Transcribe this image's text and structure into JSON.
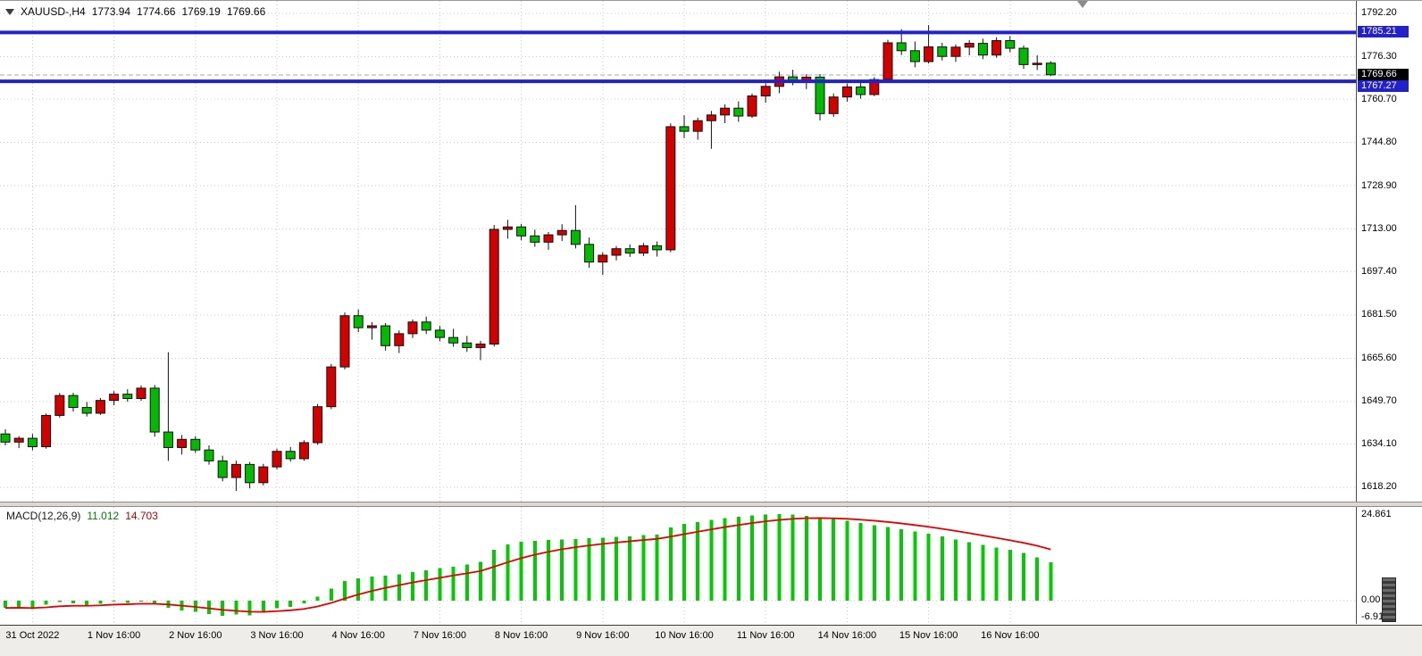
{
  "header": {
    "symbol": "XAUUSD-,H4",
    "open": "1773.94",
    "high": "1774.66",
    "low": "1769.19",
    "close": "1769.66"
  },
  "indicator": {
    "label": "MACD(12,26,9)",
    "main_value": "11.012",
    "signal_value": "14.703"
  },
  "price_axis": {
    "grid_labels": [
      "1792.20",
      "1776.30",
      "1760.70",
      "1744.80",
      "1728.90",
      "1713.00",
      "1697.40",
      "1681.50",
      "1665.60",
      "1649.70",
      "1634.10",
      "1618.20"
    ],
    "level_labels": [
      {
        "text": "1785.21",
        "style": "blue"
      },
      {
        "text": "1769.66",
        "style": "black"
      },
      {
        "text": "1767.27",
        "style": "blue"
      }
    ]
  },
  "macd_axis": {
    "max_label": "24.861",
    "zero_label": "0.00",
    "min_label": "-6.91"
  },
  "colors": {
    "bull": "#D40000",
    "bear": "#00BB00",
    "wick": "#111111",
    "level": "#2121CE",
    "grid": "#C9C9C9",
    "bid": "#AAAAB8",
    "hist": "#00CC00",
    "signal": "#E80000",
    "tag_black_bg": "#000000"
  },
  "chart_data": [
    {
      "type": "candlestick",
      "symbol": "XAUUSD-",
      "timeframe": "H4",
      "current_ohlc": {
        "open": 1773.94,
        "high": 1774.66,
        "low": 1769.19,
        "close": 1769.66
      },
      "ylim": [
        1612.0,
        1796.8
      ],
      "x_labels": [
        "31 Oct 2022",
        "1 Nov 16:00",
        "2 Nov 16:00",
        "3 Nov 16:00",
        "4 Nov 16:00",
        "7 Nov 16:00",
        "8 Nov 16:00",
        "9 Nov 16:00",
        "10 Nov 16:00",
        "11 Nov 16:00",
        "14 Nov 16:00",
        "15 Nov 16:00",
        "16 Nov 16:00"
      ],
      "x_label_candle_indices": [
        2,
        8,
        14,
        20,
        26,
        32,
        38,
        44,
        50,
        56,
        62,
        68,
        74
      ],
      "horizontal_lines": [
        {
          "price": 1785.21,
          "label": "1785.21"
        },
        {
          "price": 1767.27,
          "label": "1767.27"
        }
      ],
      "bid_price": 1769.66,
      "color_note": "bullish candles rendered red, bearish candles rendered green",
      "candles": [
        [
          1637.8,
          1639.5,
          1633.6,
          1634.8
        ],
        [
          1634.8,
          1637.0,
          1632.6,
          1636.2
        ],
        [
          1636.2,
          1637.8,
          1631.8,
          1633.1
        ],
        [
          1633.1,
          1645.3,
          1632.4,
          1644.6
        ],
        [
          1644.6,
          1652.8,
          1643.8,
          1651.9
        ],
        [
          1651.9,
          1652.9,
          1646.0,
          1647.5
        ],
        [
          1647.5,
          1649.5,
          1644.2,
          1645.4
        ],
        [
          1645.4,
          1651.0,
          1644.8,
          1650.1
        ],
        [
          1650.1,
          1653.5,
          1648.3,
          1652.4
        ],
        [
          1652.4,
          1654.2,
          1649.6,
          1650.8
        ],
        [
          1650.8,
          1655.6,
          1650.0,
          1654.6
        ],
        [
          1654.6,
          1655.8,
          1636.8,
          1638.5
        ],
        [
          1638.5,
          1667.8,
          1627.9,
          1632.8
        ],
        [
          1632.8,
          1637.4,
          1630.2,
          1635.8
        ],
        [
          1635.8,
          1637.0,
          1630.8,
          1631.9
        ],
        [
          1631.9,
          1633.6,
          1626.5,
          1627.9
        ],
        [
          1627.9,
          1629.8,
          1620.4,
          1621.8
        ],
        [
          1621.8,
          1628.0,
          1616.9,
          1626.6
        ],
        [
          1626.6,
          1627.5,
          1617.8,
          1619.9
        ],
        [
          1619.9,
          1626.8,
          1618.9,
          1625.7
        ],
        [
          1625.7,
          1632.4,
          1624.8,
          1631.4
        ],
        [
          1631.4,
          1633.0,
          1627.6,
          1628.7
        ],
        [
          1628.7,
          1635.5,
          1627.9,
          1634.6
        ],
        [
          1634.6,
          1648.8,
          1633.8,
          1647.8
        ],
        [
          1647.8,
          1663.5,
          1646.9,
          1662.4
        ],
        [
          1662.4,
          1682.4,
          1661.5,
          1681.2
        ],
        [
          1681.2,
          1683.5,
          1675.2,
          1676.8
        ],
        [
          1676.8,
          1678.9,
          1672.4,
          1677.5
        ],
        [
          1677.5,
          1678.5,
          1668.4,
          1670.2
        ],
        [
          1670.2,
          1675.8,
          1667.5,
          1674.6
        ],
        [
          1674.6,
          1679.8,
          1673.0,
          1678.9
        ],
        [
          1678.9,
          1680.9,
          1674.5,
          1675.9
        ],
        [
          1675.9,
          1677.5,
          1671.8,
          1673.2
        ],
        [
          1673.2,
          1676.4,
          1669.8,
          1671.2
        ],
        [
          1671.2,
          1673.8,
          1667.9,
          1669.5
        ],
        [
          1669.5,
          1672.0,
          1664.9,
          1670.8
        ],
        [
          1670.8,
          1714.5,
          1669.9,
          1712.9
        ],
        [
          1712.9,
          1716.4,
          1709.5,
          1713.8
        ],
        [
          1713.8,
          1714.9,
          1708.9,
          1710.5
        ],
        [
          1710.5,
          1712.8,
          1706.5,
          1708.2
        ],
        [
          1708.2,
          1711.9,
          1705.4,
          1710.9
        ],
        [
          1710.9,
          1714.8,
          1708.6,
          1712.5
        ],
        [
          1712.5,
          1721.8,
          1705.9,
          1707.4
        ],
        [
          1707.4,
          1709.9,
          1698.8,
          1700.9
        ],
        [
          1700.9,
          1704.5,
          1696.2,
          1703.4
        ],
        [
          1703.4,
          1706.8,
          1701.5,
          1705.8
        ],
        [
          1705.8,
          1707.4,
          1702.8,
          1704.2
        ],
        [
          1704.2,
          1707.9,
          1703.1,
          1706.9
        ],
        [
          1706.9,
          1708.5,
          1702.9,
          1705.4
        ],
        [
          1705.4,
          1751.8,
          1704.5,
          1750.6
        ],
        [
          1750.6,
          1754.8,
          1746.4,
          1748.9
        ],
        [
          1748.9,
          1753.9,
          1745.8,
          1752.8
        ],
        [
          1752.8,
          1756.4,
          1742.5,
          1754.9
        ],
        [
          1754.9,
          1758.8,
          1751.9,
          1757.4
        ],
        [
          1757.4,
          1759.9,
          1752.4,
          1754.5
        ],
        [
          1754.5,
          1762.8,
          1753.8,
          1761.9
        ],
        [
          1761.9,
          1766.5,
          1759.4,
          1765.4
        ],
        [
          1765.4,
          1770.8,
          1762.9,
          1768.9
        ],
        [
          1768.9,
          1771.5,
          1765.8,
          1767.2
        ],
        [
          1767.2,
          1769.9,
          1764.4,
          1768.8
        ],
        [
          1768.8,
          1769.9,
          1752.9,
          1755.4
        ],
        [
          1755.4,
          1762.8,
          1754.2,
          1761.5
        ],
        [
          1761.5,
          1766.4,
          1759.8,
          1765.2
        ],
        [
          1765.2,
          1766.9,
          1760.9,
          1762.4
        ],
        [
          1762.4,
          1768.8,
          1761.8,
          1767.9
        ],
        [
          1767.9,
          1782.5,
          1767.2,
          1781.4
        ],
        [
          1781.4,
          1786.4,
          1776.9,
          1778.5
        ],
        [
          1778.5,
          1781.9,
          1772.4,
          1774.5
        ],
        [
          1774.5,
          1787.9,
          1773.8,
          1779.9
        ],
        [
          1779.9,
          1781.4,
          1774.9,
          1776.4
        ],
        [
          1776.4,
          1780.8,
          1774.4,
          1779.8
        ],
        [
          1779.8,
          1782.4,
          1776.8,
          1781.2
        ],
        [
          1781.2,
          1782.9,
          1775.4,
          1776.9
        ],
        [
          1776.9,
          1783.4,
          1775.9,
          1782.2
        ],
        [
          1782.2,
          1783.9,
          1777.9,
          1779.4
        ],
        [
          1779.4,
          1780.4,
          1771.9,
          1773.4
        ],
        [
          1773.4,
          1776.8,
          1771.4,
          1773.9
        ],
        [
          1773.94,
          1774.66,
          1769.19,
          1769.66
        ]
      ]
    },
    {
      "type": "bar+line",
      "title": "MACD(12,26,9)",
      "current_main": 11.012,
      "current_signal": 14.703,
      "ylim": [
        -6.91,
        24.861
      ],
      "histogram": [
        -2.1,
        -1.8,
        -2.4,
        -1.2,
        -0.4,
        -0.8,
        -1.5,
        -0.9,
        -0.3,
        -0.6,
        -0.2,
        -1.0,
        -2.0,
        -2.8,
        -3.2,
        -3.8,
        -4.4,
        -4.0,
        -4.2,
        -3.4,
        -2.2,
        -1.8,
        -0.8,
        1.2,
        3.4,
        5.6,
        6.4,
        6.9,
        7.2,
        7.6,
        8.2,
        8.7,
        9.3,
        9.8,
        10.4,
        11.2,
        14.6,
        16.2,
        16.9,
        17.2,
        17.4,
        17.6,
        17.7,
        17.9,
        18.1,
        18.3,
        18.5,
        18.8,
        19.0,
        21.0,
        22.0,
        22.6,
        23.2,
        23.7,
        24.1,
        24.5,
        24.75,
        24.861,
        24.7,
        24.4,
        23.9,
        23.4,
        22.9,
        22.3,
        21.7,
        21.2,
        20.5,
        19.8,
        19.2,
        18.4,
        17.6,
        16.8,
        16.0,
        15.3,
        14.6,
        13.7,
        12.4,
        11.012
      ],
      "signal": [
        -2.1,
        -2.04,
        -2.11,
        -1.93,
        -1.62,
        -1.46,
        -1.47,
        -1.35,
        -1.14,
        -1.04,
        -0.87,
        -0.89,
        -1.11,
        -1.45,
        -1.8,
        -2.2,
        -2.64,
        -2.91,
        -3.17,
        -3.22,
        -3.01,
        -2.77,
        -2.38,
        -1.66,
        -0.65,
        0.6,
        1.76,
        2.79,
        3.67,
        4.46,
        5.21,
        5.9,
        6.58,
        7.23,
        7.86,
        8.53,
        9.74,
        11.04,
        12.21,
        13.21,
        14.04,
        14.76,
        15.34,
        15.86,
        16.31,
        16.7,
        17.06,
        17.41,
        17.73,
        18.38,
        19.1,
        19.8,
        20.48,
        21.13,
        21.72,
        22.28,
        22.77,
        23.19,
        23.49,
        23.67,
        23.72,
        23.65,
        23.5,
        23.26,
        22.95,
        22.6,
        22.18,
        21.7,
        21.2,
        20.64,
        20.03,
        19.39,
        18.71,
        18.03,
        17.34,
        16.61,
        15.77,
        14.7
      ]
    }
  ]
}
